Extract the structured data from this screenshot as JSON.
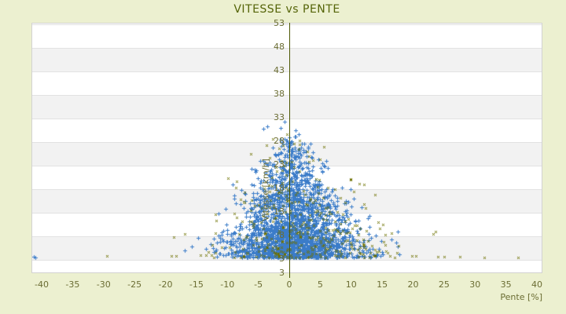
{
  "page": {
    "background_color": "#ECF0D0",
    "title_color": "#556408",
    "axis_text_color": "#6B6D33",
    "axis_line_color": "#4D5804",
    "band_color": "#F2F2F2",
    "plot_background": "#FFFFFF"
  },
  "chart_data": {
    "type": "scatter",
    "title": "VITESSE vs PENTE",
    "xlabel": "Pente [%]",
    "ylabel": "Vitesse [km/h]",
    "xlim": [
      -41.6,
      40.9
    ],
    "ylim": [
      3,
      53
    ],
    "x_ticks": [
      -40,
      -35,
      -30,
      -25,
      -20,
      -15,
      -10,
      -5,
      0,
      5,
      10,
      15,
      20,
      25,
      30,
      35,
      40
    ],
    "y_ticks": [
      53,
      48,
      43,
      38,
      33,
      28,
      23,
      18,
      13,
      8,
      3
    ],
    "y_axis_end_label": "3",
    "grid": "horizontal-bands-every-5-units",
    "legend_position": "none",
    "vertical_axis_at_x": 0,
    "description": "Dense triangular cloud of speed-vs-slope samples centred on 0% slope; peak speeds ~31 km/h near 0% slope, widening spread toward low speeds; sparse outlier row near 4 km/h from -41% to +37% slope.",
    "series": [
      {
        "name": "vitesse-samples-blue",
        "marker": "plus",
        "color": "#3B7CC9",
        "count": 2400,
        "seed": 20240601,
        "y_min": 3.3,
        "y_span": 28.2,
        "x_mu_bottom": 1.1,
        "x_mu_top": 0.1,
        "x_sigma_bottom": 5.7,
        "x_sigma_top": 1.1,
        "x_clamp": 19,
        "y_max": 31.8
      },
      {
        "name": "vitesse-samples-olive",
        "marker": "x",
        "color": "#6E7100",
        "count": 360,
        "seed": 987654,
        "y_min": 3.3,
        "y_span": 28.5,
        "x_mu_bottom": 2.2,
        "x_mu_top": 0.3,
        "x_sigma_bottom": 8.0,
        "x_sigma_top": 1.6,
        "x_clamp": 21,
        "y_max": 31.0
      }
    ],
    "outlier_points": [
      {
        "x": -41.3,
        "y": 3.5,
        "s": 1
      },
      {
        "x": -41.0,
        "y": 3.3,
        "s": 1
      },
      {
        "x": -29.5,
        "y": 3.6,
        "s": 2
      },
      {
        "x": -19.0,
        "y": 3.6,
        "s": 2
      },
      {
        "x": -18.3,
        "y": 3.6,
        "s": 2
      },
      {
        "x": -13.5,
        "y": 3.8,
        "s": 2
      },
      {
        "x": -11.2,
        "y": 4.1,
        "s": 1
      },
      {
        "x": 13.9,
        "y": 3.6,
        "s": 2
      },
      {
        "x": 15.1,
        "y": 4.0,
        "s": 1
      },
      {
        "x": 16.2,
        "y": 3.6,
        "s": 2
      },
      {
        "x": 17.0,
        "y": 3.4,
        "s": 2
      },
      {
        "x": 17.8,
        "y": 4.0,
        "s": 1
      },
      {
        "x": 19.8,
        "y": 3.6,
        "s": 2
      },
      {
        "x": 20.5,
        "y": 3.6,
        "s": 2
      },
      {
        "x": 24.0,
        "y": 3.5,
        "s": 2
      },
      {
        "x": 25.0,
        "y": 3.5,
        "s": 2
      },
      {
        "x": 27.5,
        "y": 3.5,
        "s": 2
      },
      {
        "x": 31.5,
        "y": 3.4,
        "s": 2
      },
      {
        "x": 37.0,
        "y": 3.4,
        "s": 2
      },
      {
        "x": 23.2,
        "y": 8.3,
        "s": 2
      },
      {
        "x": 23.6,
        "y": 8.8,
        "s": 2
      },
      {
        "x": 13.2,
        "y": 7.5,
        "s": 1
      },
      {
        "x": 14.0,
        "y": 8.0,
        "s": 1
      },
      {
        "x": 15.5,
        "y": 8.2,
        "s": 2
      },
      {
        "x": 16.5,
        "y": 7.2,
        "s": 1
      },
      {
        "x": 12.5,
        "y": 9.0,
        "s": 2
      },
      {
        "x": 17.3,
        "y": 6.5,
        "s": 1
      },
      {
        "x": -0.8,
        "y": 32.2,
        "s": 1
      },
      {
        "x": -3.6,
        "y": 31.2,
        "s": 1
      },
      {
        "x": -4.2,
        "y": 30.6,
        "s": 1
      }
    ]
  }
}
